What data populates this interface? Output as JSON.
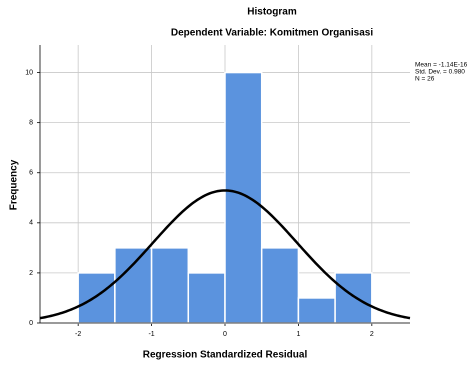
{
  "chart_data": {
    "type": "histogram",
    "title": "Histogram",
    "subtitle": "Dependent Variable: Komitmen Organisasi",
    "x_label": "Regression Standardized Residual",
    "y_label": "Frequency",
    "bins": [
      -2,
      -1.5,
      -1,
      -0.5,
      0,
      0.5,
      1,
      1.5,
      2
    ],
    "counts": [
      2,
      3,
      3,
      2,
      10,
      3,
      1,
      2
    ],
    "color": "#5b93de",
    "xlim": [
      -2.52,
      2.52
    ],
    "xticks": [
      -2,
      -1,
      0,
      1,
      2
    ],
    "ylim": [
      0,
      11.1
    ],
    "yticks": [
      0,
      2,
      4,
      6,
      8,
      10
    ],
    "grid": true,
    "stats": {
      "mean": {
        "value": -1.14e-16,
        "label": "Mean = -1.14E-16"
      },
      "std_dev": {
        "value": 0.98,
        "label": "Std. Dev. = 0.980"
      },
      "n": {
        "value": 26,
        "label": "N = 26"
      }
    }
  }
}
